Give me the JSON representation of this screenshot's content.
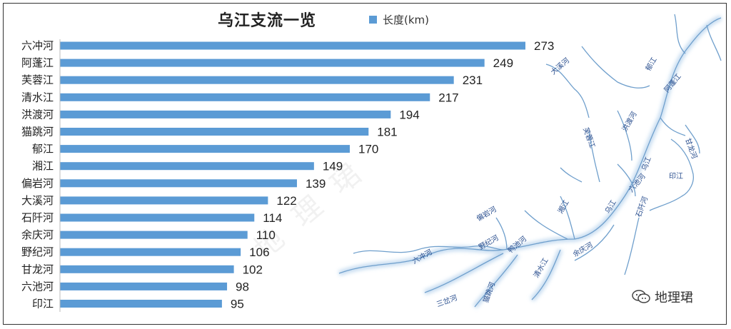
{
  "chart_data": {
    "type": "bar",
    "orientation": "horizontal",
    "title": "乌江支流一览",
    "legend": {
      "entry": "长度(km)",
      "placement": "top"
    },
    "categories": [
      "六冲河",
      "阿蓬江",
      "芙蓉江",
      "清水江",
      "洪渡河",
      "猫跳河",
      "郁江",
      "湘江",
      "偏岩河",
      "大溪河",
      "石阡河",
      "余庆河",
      "野纪河",
      "甘龙河",
      "六池河",
      "印江"
    ],
    "series": [
      {
        "name": "长度(km)",
        "values": [
          273,
          249,
          231,
          217,
          194,
          181,
          170,
          149,
          139,
          122,
          114,
          110,
          106,
          102,
          98,
          95
        ]
      }
    ],
    "xlim": [
      0,
      300
    ],
    "grid": false,
    "bar_color": "#5b9bd5"
  },
  "map": {
    "labels": [
      "大溪河",
      "郁江",
      "阿蓬江",
      "芙蓉江",
      "洪渡河",
      "甘龙河",
      "印江",
      "乌江",
      "六池河",
      "湘江",
      "乌江",
      "石阡河",
      "偏岩河",
      "野纪河",
      "六冲河",
      "鸭池河",
      "余庆河",
      "清水江",
      "三岔河",
      "猫跳河"
    ]
  },
  "watermark": {
    "text": "地理珺"
  },
  "background_mark": "地理珺"
}
